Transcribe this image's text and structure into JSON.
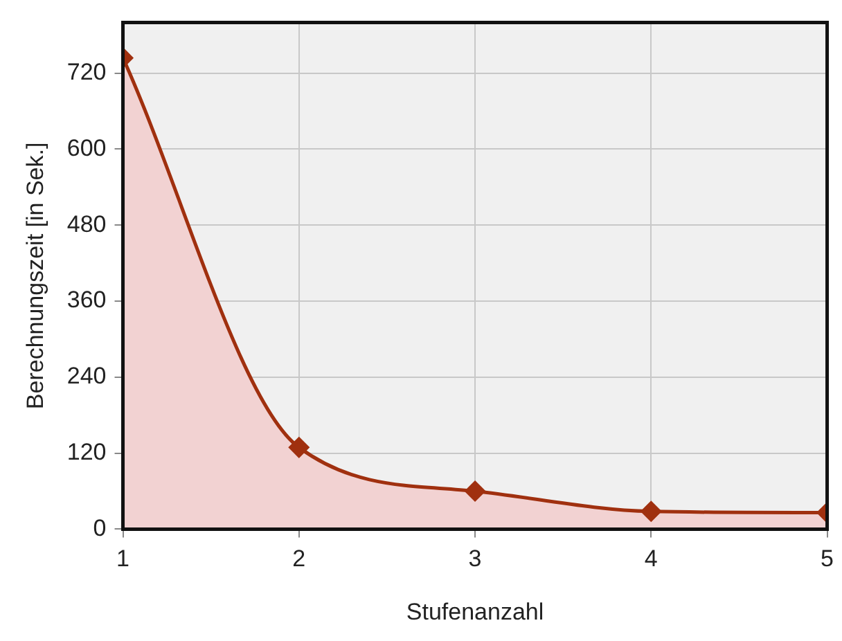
{
  "chart_data": {
    "type": "area",
    "xlabel": "Stufenanzahl",
    "ylabel": "Berechnungszeit [in Sek.]",
    "x": [
      1,
      2,
      3,
      4,
      5
    ],
    "series": [
      {
        "color": "#a0300f",
        "values": [
          744,
          129,
          60,
          28,
          26
        ]
      }
    ],
    "xlim": [
      1,
      5
    ],
    "xticks": [
      1,
      2,
      3,
      4,
      5
    ],
    "ylim": [
      0,
      800
    ],
    "yticks": [
      0,
      120,
      240,
      360,
      480,
      600,
      720
    ],
    "grid": true,
    "marker": "diamond",
    "legend": false
  }
}
